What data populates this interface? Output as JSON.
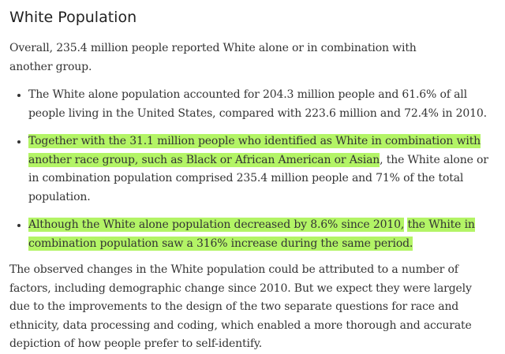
{
  "heading": "White Population",
  "intro": "Overall, 235.4 million people reported White alone or in combination with another group.",
  "bullets": {
    "b1": "The White alone population accounted for 204.3 million people and 61.6% of all people living in the United States, compared with 223.6 million and 72.4% in 2010.",
    "b2_highlight": "Together with the 31.1 million people who identified as White in combination with another race group, such as Black or African American or Asian",
    "b2_rest": ", the White alone or in combination population comprised 235.4 million people and 71% of the total population.",
    "b3_highlight_a": "Although the White alone population decreased by 8.6% since 2010,",
    "b3_space": " ",
    "b3_highlight_b": "the White in combination population saw a 316% increase during the same period."
  },
  "closing": "The observed changes in the White population could be attributed to a number of factors, including demographic change since 2010. But we expect they were largely due to the improvements to the design of the two separate questions for race and ethnicity, data processing and coding, which enabled a more thorough and accurate depiction of how people prefer to self-identify.",
  "colors": {
    "highlight": "#b3f466",
    "text": "#333333"
  }
}
